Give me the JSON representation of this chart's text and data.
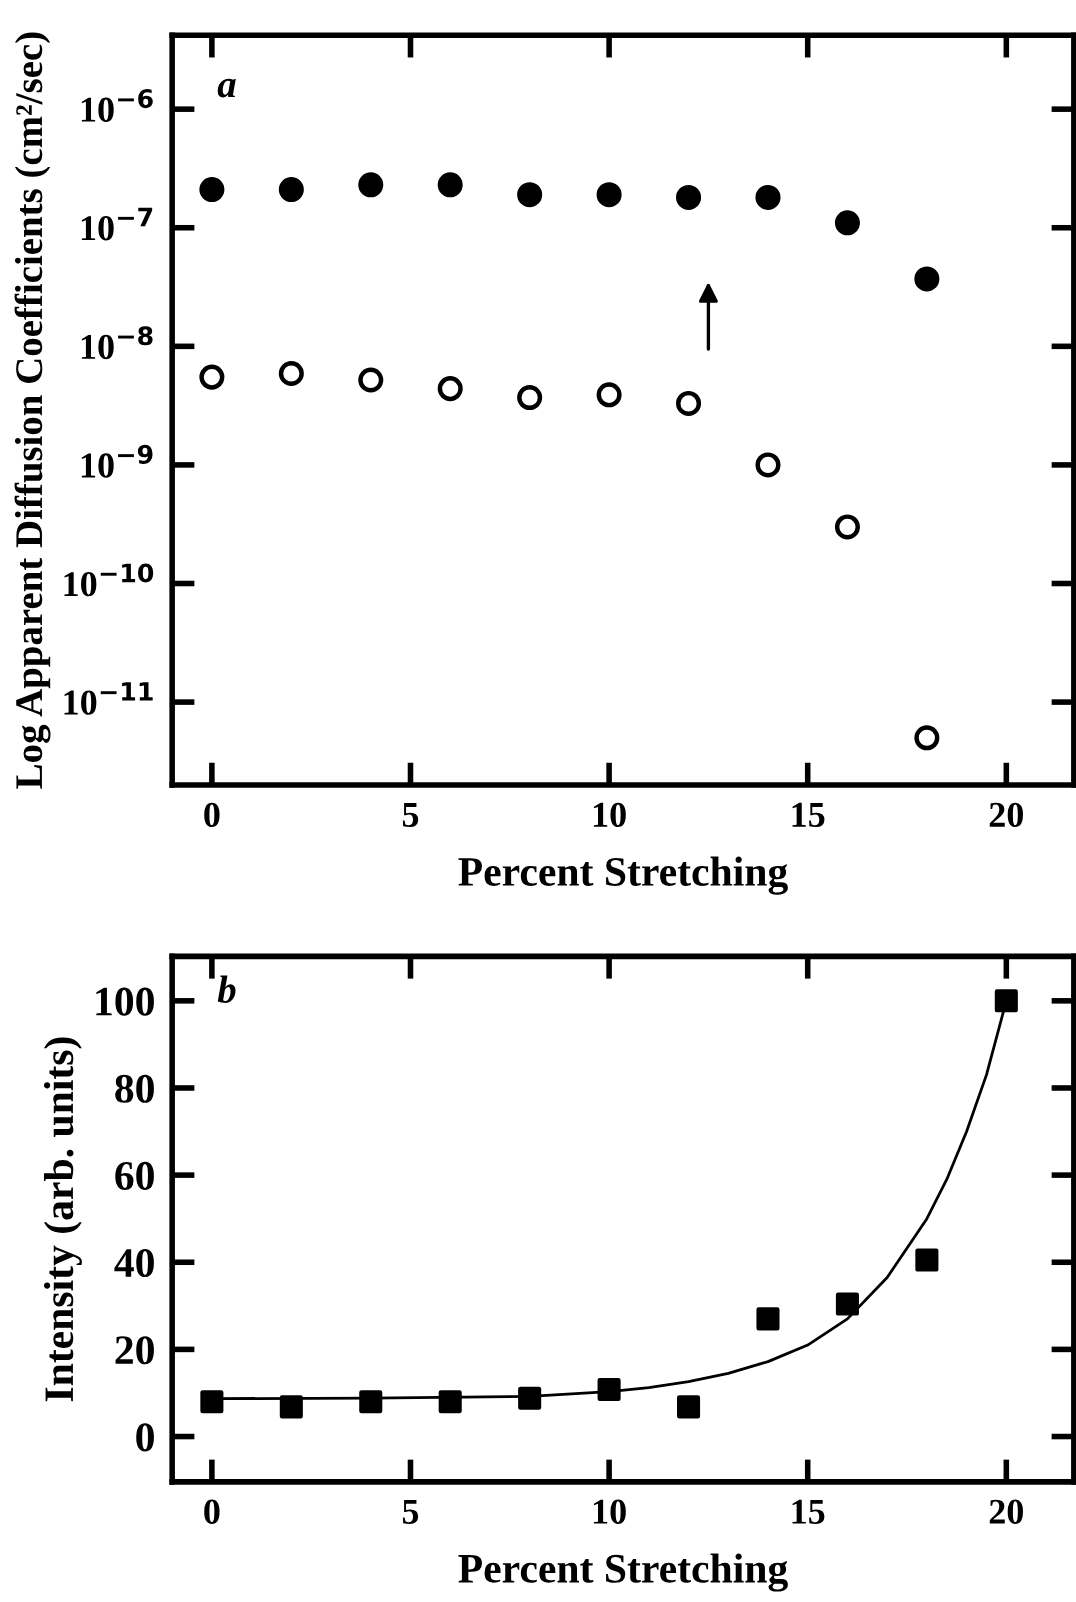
{
  "chart_data": [
    {
      "type": "scatter",
      "xlabel": "Percent Stretching",
      "ylabel": "Log Apparent Diffusion Coefficients (cm²/sec)",
      "log": "y",
      "marker": "circle",
      "annotations": [
        "a"
      ],
      "x": [
        0,
        2,
        4,
        6,
        8,
        10,
        12,
        14,
        16,
        18
      ],
      "series": [
        {
          "color": "#000000",
          "values": [
            2.1e-07,
            2.1e-07,
            2.3e-07,
            2.3e-07,
            1.9e-07,
            1.9e-07,
            1.8e-07,
            1.8e-07,
            1.1e-07,
            3.7e-08
          ]
        },
        {
          "color": "#ffffff",
          "values": [
            5.5e-09,
            5.9e-09,
            5.2e-09,
            4.4e-09,
            3.7e-09,
            3.9e-09,
            3.3e-09,
            1e-09,
            3e-10,
            5e-12
          ]
        }
      ],
      "xlim": [
        -1,
        21.7
      ],
      "xticks": [
        0,
        5,
        10,
        15,
        20
      ],
      "ylim": [
        2e-12,
        4.2e-06
      ],
      "yticks": [
        {
          "value": 1e-06,
          "label": "10$^{−6}$"
        },
        {
          "value": 1e-07,
          "label": "10$^{−7}$"
        },
        {
          "value": 1e-08,
          "label": "10$^{−8}$"
        },
        {
          "value": 1e-09,
          "label": "10$^{−9}$"
        },
        {
          "value": 1e-10,
          "label": "10$^{−10}$"
        },
        {
          "value": 1e-11,
          "label": "10$^{−11}$"
        }
      ]
    },
    {
      "type": "scatter",
      "xlabel": "Percent Stretching",
      "ylabel": "Intensity (arb. units)",
      "marker": "square",
      "annotations": [
        "b"
      ],
      "x": [
        0,
        2,
        4,
        6,
        8,
        10,
        12,
        14,
        16,
        18,
        20
      ],
      "series": [
        {
          "color": "#000000",
          "values": [
            8.0,
            6.8,
            8.0,
            8.0,
            8.8,
            10.8,
            6.8,
            27.0,
            30.4,
            40.5,
            100
          ]
        },
        {
          "type": "line",
          "marker": "none",
          "color": "#000000",
          "x": [
            0,
            4,
            8,
            10,
            11,
            12,
            13,
            14,
            15,
            16,
            17,
            18,
            18.5,
            19,
            19.5,
            20
          ],
          "values": [
            8.7,
            8.8,
            9.2,
            10.3,
            11.2,
            12.6,
            14.5,
            17.2,
            21,
            27,
            36.5,
            50,
            59,
            70,
            83,
            100
          ]
        }
      ],
      "xlim": [
        -1,
        21.7
      ],
      "xticks": [
        0,
        5,
        10,
        15,
        20
      ],
      "ylim": [
        -10.4,
        110.2
      ],
      "yticks": [
        0,
        20,
        40,
        60,
        80,
        100
      ]
    }
  ]
}
